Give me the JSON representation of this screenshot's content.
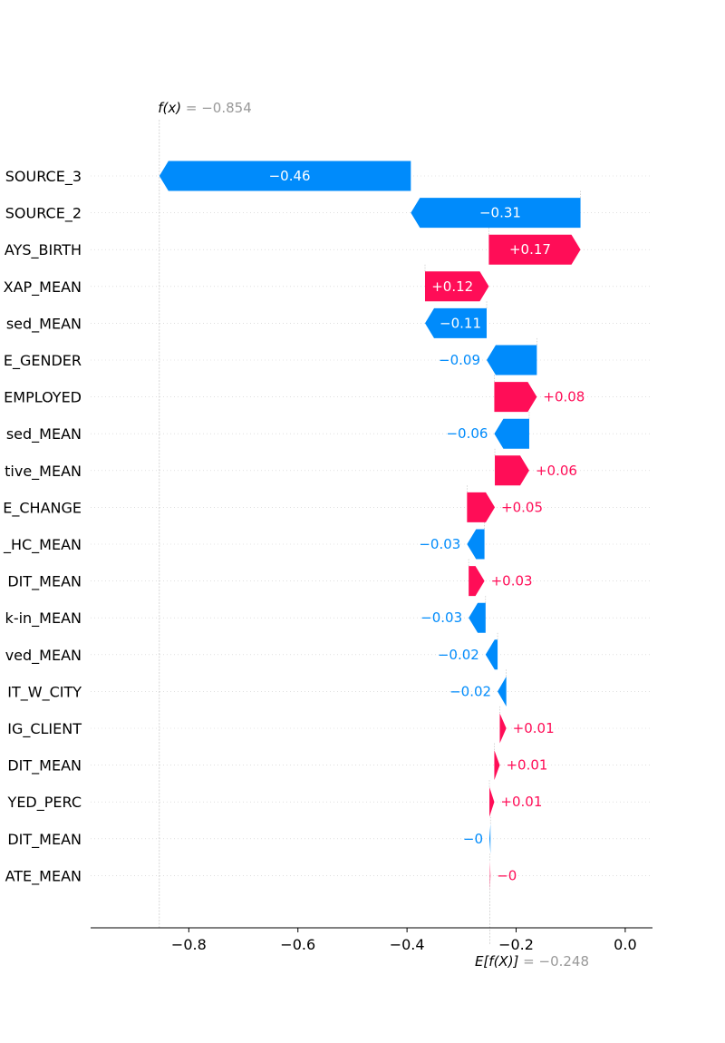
{
  "chart_data": {
    "type": "waterfall",
    "fx": {
      "symbol": "f(x)",
      "equals": " = −0.854",
      "value": -0.854
    },
    "base": {
      "symbol": "E[f(X)]",
      "equals": " = −0.248",
      "value": -0.248
    },
    "xlim": [
      -0.98,
      0.05
    ],
    "xticks": [
      {
        "value": -0.8,
        "label": "−0.8"
      },
      {
        "value": -0.6,
        "label": "−0.6"
      },
      {
        "value": -0.4,
        "label": "−0.4"
      },
      {
        "value": -0.2,
        "label": "−0.2"
      },
      {
        "value": 0.0,
        "label": "0.0"
      }
    ],
    "features": [
      {
        "name": "SOURCE_3",
        "start": -0.393,
        "end": -0.854,
        "label": "−0.46"
      },
      {
        "name": "SOURCE_2",
        "start": -0.082,
        "end": -0.393,
        "label": "−0.31"
      },
      {
        "name": "AYS_BIRTH",
        "start": -0.25,
        "end": -0.082,
        "label": "+0.17"
      },
      {
        "name": "XAP_MEAN",
        "start": -0.367,
        "end": -0.25,
        "label": "+0.12"
      },
      {
        "name": "sed_MEAN",
        "start": -0.254,
        "end": -0.367,
        "label": "−0.11"
      },
      {
        "name": "E_GENDER",
        "start": -0.162,
        "end": -0.254,
        "label": "−0.09"
      },
      {
        "name": "EMPLOYED",
        "start": -0.24,
        "end": -0.162,
        "label": "+0.08"
      },
      {
        "name": "sed_MEAN",
        "start": -0.176,
        "end": -0.24,
        "label": "−0.06"
      },
      {
        "name": "tive_MEAN",
        "start": -0.239,
        "end": -0.176,
        "label": "+0.06"
      },
      {
        "name": "E_CHANGE",
        "start": -0.29,
        "end": -0.239,
        "label": "+0.05"
      },
      {
        "name": "_HC_MEAN",
        "start": -0.258,
        "end": -0.29,
        "label": "−0.03"
      },
      {
        "name": "DIT_MEAN",
        "start": -0.287,
        "end": -0.258,
        "label": "+0.03"
      },
      {
        "name": "k-in_MEAN",
        "start": -0.256,
        "end": -0.287,
        "label": "−0.03"
      },
      {
        "name": "ved_MEAN",
        "start": -0.234,
        "end": -0.256,
        "label": "−0.02"
      },
      {
        "name": "IT_W_CITY",
        "start": -0.218,
        "end": -0.234,
        "label": "−0.02"
      },
      {
        "name": "IG_CLIENT",
        "start": -0.23,
        "end": -0.218,
        "label": "+0.01"
      },
      {
        "name": "DIT_MEAN",
        "start": -0.24,
        "end": -0.23,
        "label": "+0.01"
      },
      {
        "name": "YED_PERC",
        "start": -0.249,
        "end": -0.24,
        "label": "+0.01"
      },
      {
        "name": "DIT_MEAN",
        "start": -0.247,
        "end": -0.249,
        "label": "−0"
      },
      {
        "name": "ATE_MEAN",
        "start": -0.248,
        "end": -0.247,
        "label": "−0"
      }
    ],
    "colors": {
      "positive": "#ff0d57",
      "negative": "#008bfb",
      "annotation": "#999999"
    }
  }
}
